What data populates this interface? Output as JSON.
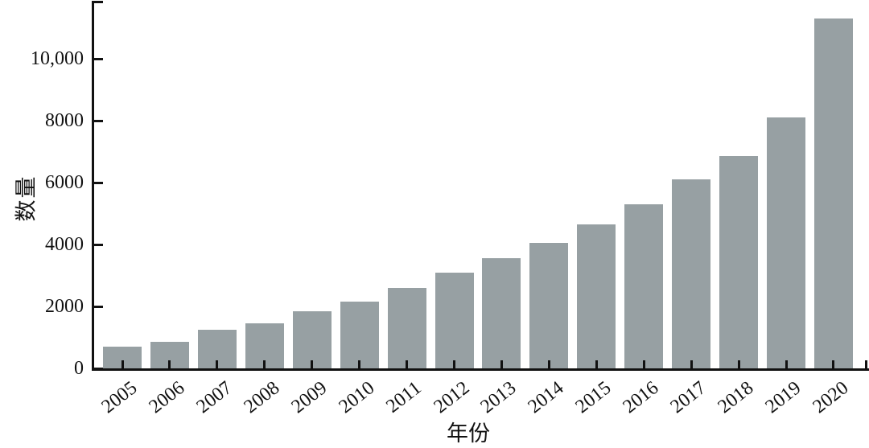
{
  "chart_data": {
    "type": "bar",
    "title": "",
    "xlabel": "年份",
    "ylabel": "数量",
    "categories": [
      "2005",
      "2006",
      "2007",
      "2008",
      "2009",
      "2010",
      "2011",
      "2012",
      "2013",
      "2014",
      "2015",
      "2016",
      "2017",
      "2018",
      "2019",
      "2020"
    ],
    "values": [
      700,
      850,
      1250,
      1450,
      1850,
      2150,
      2600,
      3100,
      3550,
      4050,
      4650,
      5300,
      6100,
      6850,
      8100,
      11300
    ],
    "ylim": [
      0,
      11850
    ],
    "yticks": [
      {
        "value": 0,
        "label": "0"
      },
      {
        "value": 2000,
        "label": "2000"
      },
      {
        "value": 4000,
        "label": "4000"
      },
      {
        "value": 6000,
        "label": "6000"
      },
      {
        "value": 8000,
        "label": "8000"
      },
      {
        "value": 10000,
        "label": "10,000"
      }
    ],
    "grid": false,
    "legend": "none",
    "bar_color": "#97a0a3",
    "axis_color": "#111111"
  }
}
